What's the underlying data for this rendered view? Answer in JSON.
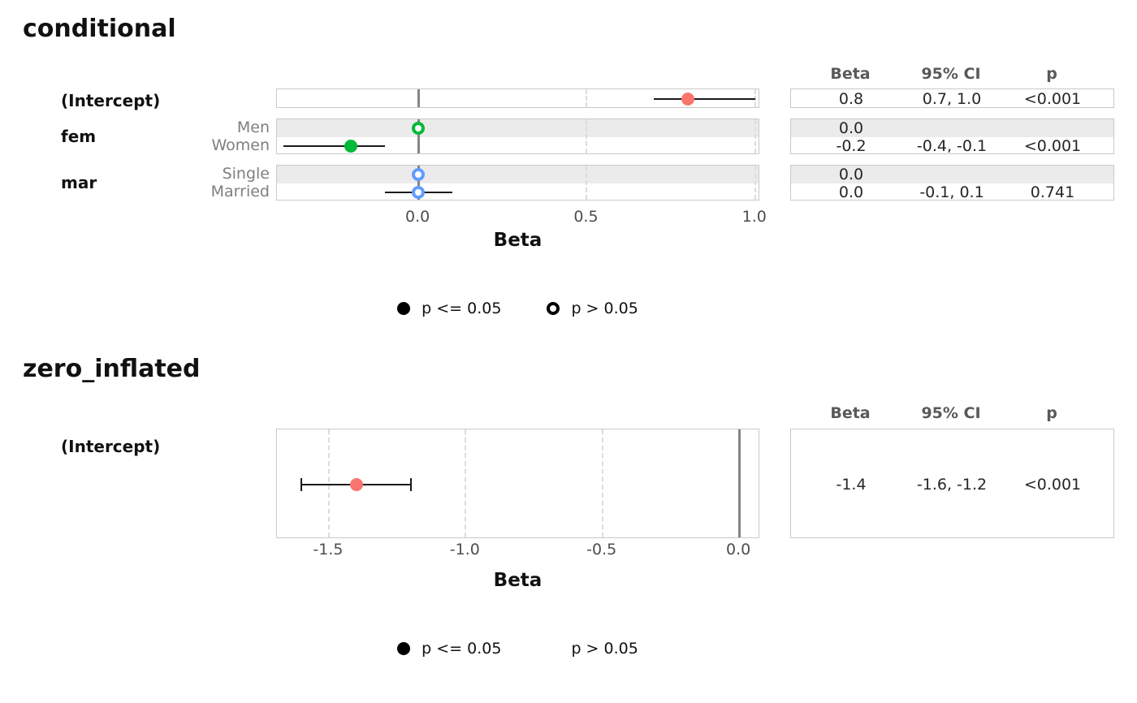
{
  "page": {
    "background": "#ffffff"
  },
  "colors": {
    "intercept_point": "#f8766d",
    "fem_point": "#00ba38",
    "mar_point": "#619cff",
    "reference_line": "#858585",
    "row_stripe": "#ebebeb",
    "panel_border": "#c9c9c9",
    "gridline": "#dcdcdc",
    "errorbar": "#1a1a1a"
  },
  "chart_data": [
    {
      "type": "scatter",
      "subtype": "forest-plot-with-table",
      "title": "conditional",
      "xlabel": "Beta",
      "xlim": [
        -0.42,
        1.015
      ],
      "x_ticks": [
        0.0,
        0.5,
        1.0
      ],
      "x_tick_labels": [
        "0.0",
        "0.5",
        "1.0"
      ],
      "ref_line": 0.0,
      "grid": "vertical-dashed-at-ticks",
      "legend_position": "bottom-center",
      "table_headers": [
        "Beta",
        "95% CI",
        "p"
      ],
      "groups": [
        {
          "label": "(Intercept)",
          "rows": [
            {
              "term": "(Intercept)",
              "sublabel": "",
              "estimate": 0.8,
              "ci_low": 0.7,
              "ci_high": 1.0,
              "color": "#f8766d",
              "filled": true,
              "caps": false,
              "beta_text": "0.8",
              "ci_text": "0.7, 1.0",
              "p_text": "<0.001"
            }
          ]
        },
        {
          "label": "fem",
          "rows": [
            {
              "term": "Men",
              "sublabel": "Men",
              "estimate": 0.0,
              "ci_low": null,
              "ci_high": null,
              "color": "#00ba38",
              "filled": false,
              "caps": false,
              "beta_text": "0.0",
              "ci_text": "",
              "p_text": ""
            },
            {
              "term": "Women",
              "sublabel": "Women",
              "estimate": -0.2,
              "ci_low": -0.4,
              "ci_high": -0.1,
              "color": "#00ba38",
              "filled": true,
              "caps": false,
              "beta_text": "-0.2",
              "ci_text": "-0.4, -0.1",
              "p_text": "<0.001"
            }
          ]
        },
        {
          "label": "mar",
          "rows": [
            {
              "term": "Single",
              "sublabel": "Single",
              "estimate": 0.0,
              "ci_low": null,
              "ci_high": null,
              "color": "#619cff",
              "filled": false,
              "caps": false,
              "beta_text": "0.0",
              "ci_text": "",
              "p_text": ""
            },
            {
              "term": "Married",
              "sublabel": "Married",
              "estimate": 0.0,
              "ci_low": -0.1,
              "ci_high": 0.1,
              "color": "#619cff",
              "filled": false,
              "caps": false,
              "beta_text": "0.0",
              "ci_text": "-0.1, 0.1",
              "p_text": "0.741"
            }
          ]
        }
      ],
      "legend": [
        {
          "symbol": "filled",
          "label": "p <= 0.05"
        },
        {
          "symbol": "open",
          "label": "p > 0.05"
        }
      ]
    },
    {
      "type": "scatter",
      "subtype": "forest-plot-with-table",
      "title": "zero_inflated",
      "xlabel": "Beta",
      "xlim": [
        -1.69,
        0.077
      ],
      "x_ticks": [
        -1.5,
        -1.0,
        -0.5,
        0.0
      ],
      "x_tick_labels": [
        "-1.5",
        "-1.0",
        "-0.5",
        "0.0"
      ],
      "ref_line": 0.0,
      "grid": "vertical-dashed-at-ticks",
      "legend_position": "bottom-center",
      "table_headers": [
        "Beta",
        "95% CI",
        "p"
      ],
      "groups": [
        {
          "label": "(Intercept)",
          "rows": [
            {
              "term": "(Intercept)",
              "sublabel": "",
              "estimate": -1.4,
              "ci_low": -1.6,
              "ci_high": -1.2,
              "color": "#f8766d",
              "filled": true,
              "caps": true,
              "beta_text": "-1.4",
              "ci_text": "-1.6, -1.2",
              "p_text": "<0.001"
            }
          ]
        }
      ],
      "legend": [
        {
          "symbol": "filled",
          "label": "p <= 0.05"
        },
        {
          "symbol": "none",
          "label": "p > 0.05"
        }
      ]
    }
  ]
}
